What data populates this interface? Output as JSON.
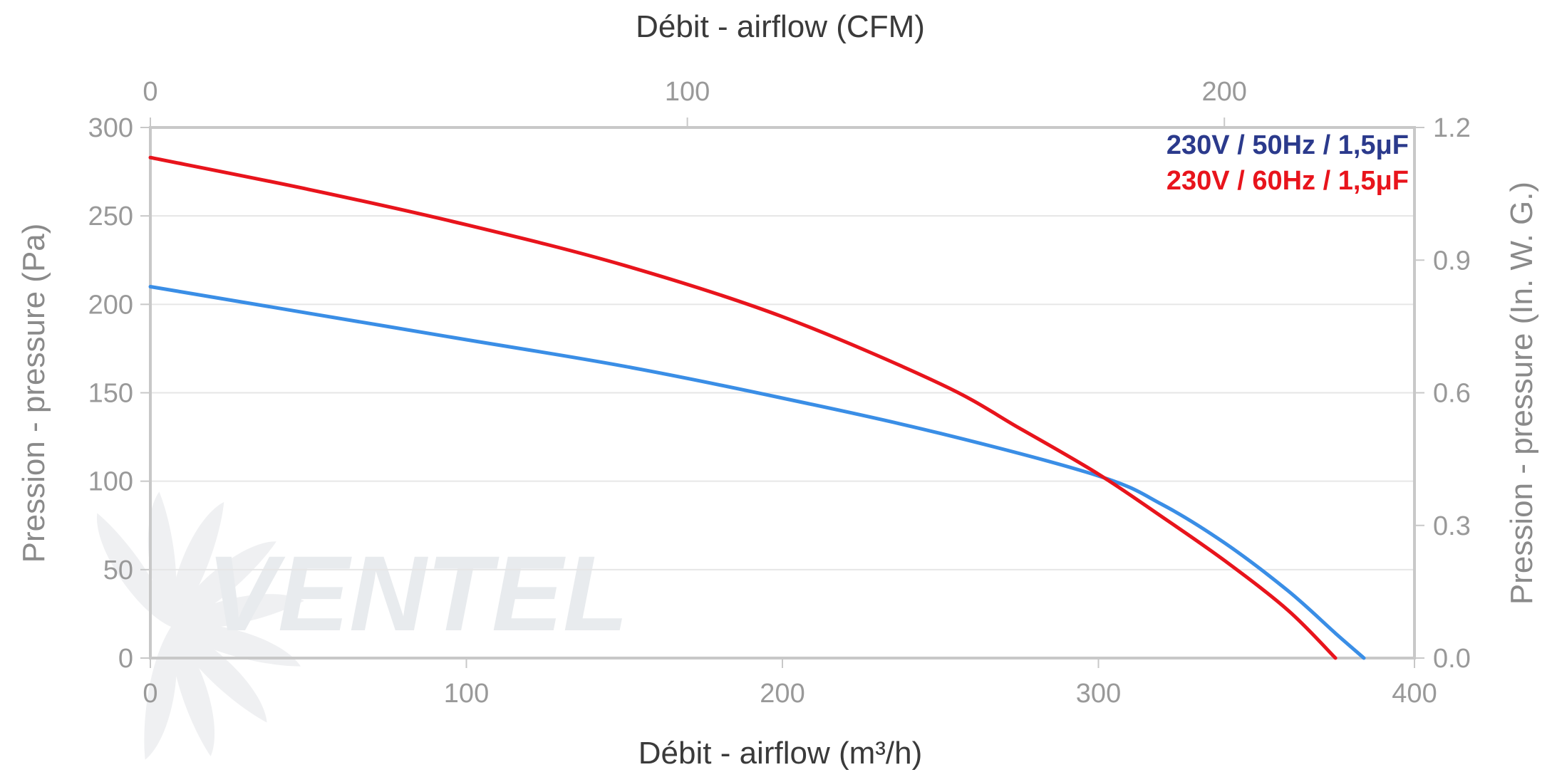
{
  "chart_data": {
    "type": "line",
    "xlabel": "Débit - airflow (m³/h)",
    "x2label": "Débit - airflow (CFM)",
    "ylabel": "Pression - pressure (Pa)",
    "y2label": "Pression - pressure (In. W. G.)",
    "xlim": [
      0,
      400
    ],
    "ylim": [
      0,
      300
    ],
    "x2lim": [
      0,
      235.4
    ],
    "y2lim": [
      0,
      1.2
    ],
    "xticks": [
      "0",
      "100",
      "200",
      "300",
      "400"
    ],
    "yticks": [
      "0",
      "50",
      "100",
      "150",
      "200",
      "250",
      "300"
    ],
    "x2ticks": [
      "0",
      "100",
      "200"
    ],
    "y2ticks": [
      "0.0",
      "0.3",
      "0.6",
      "0.9",
      "1.2"
    ],
    "grid": true,
    "legend_position": "top-right",
    "series": [
      {
        "name": "230V / 50Hz / 1,5μF",
        "color": "#3a8ee6",
        "legend_color": "#2b3a8c",
        "x": [
          0,
          50,
          100,
          150,
          200,
          250,
          300,
          320,
          340,
          360,
          375,
          384
        ],
        "y": [
          210,
          195,
          180,
          165,
          147,
          127,
          103,
          87,
          65,
          38,
          14,
          0
        ]
      },
      {
        "name": "230V / 60Hz / 1,5μF",
        "color": "#e8141c",
        "legend_color": "#e8141c",
        "x": [
          0,
          50,
          100,
          150,
          200,
          250,
          275,
          300,
          320,
          340,
          360,
          375
        ],
        "y": [
          283,
          265,
          245,
          222,
          193,
          155,
          130,
          104,
          80,
          55,
          27,
          0
        ]
      }
    ]
  },
  "watermark": {
    "text": "VENTEL",
    "color": "#d6dbe0",
    "accent": "#c6dcf0"
  }
}
